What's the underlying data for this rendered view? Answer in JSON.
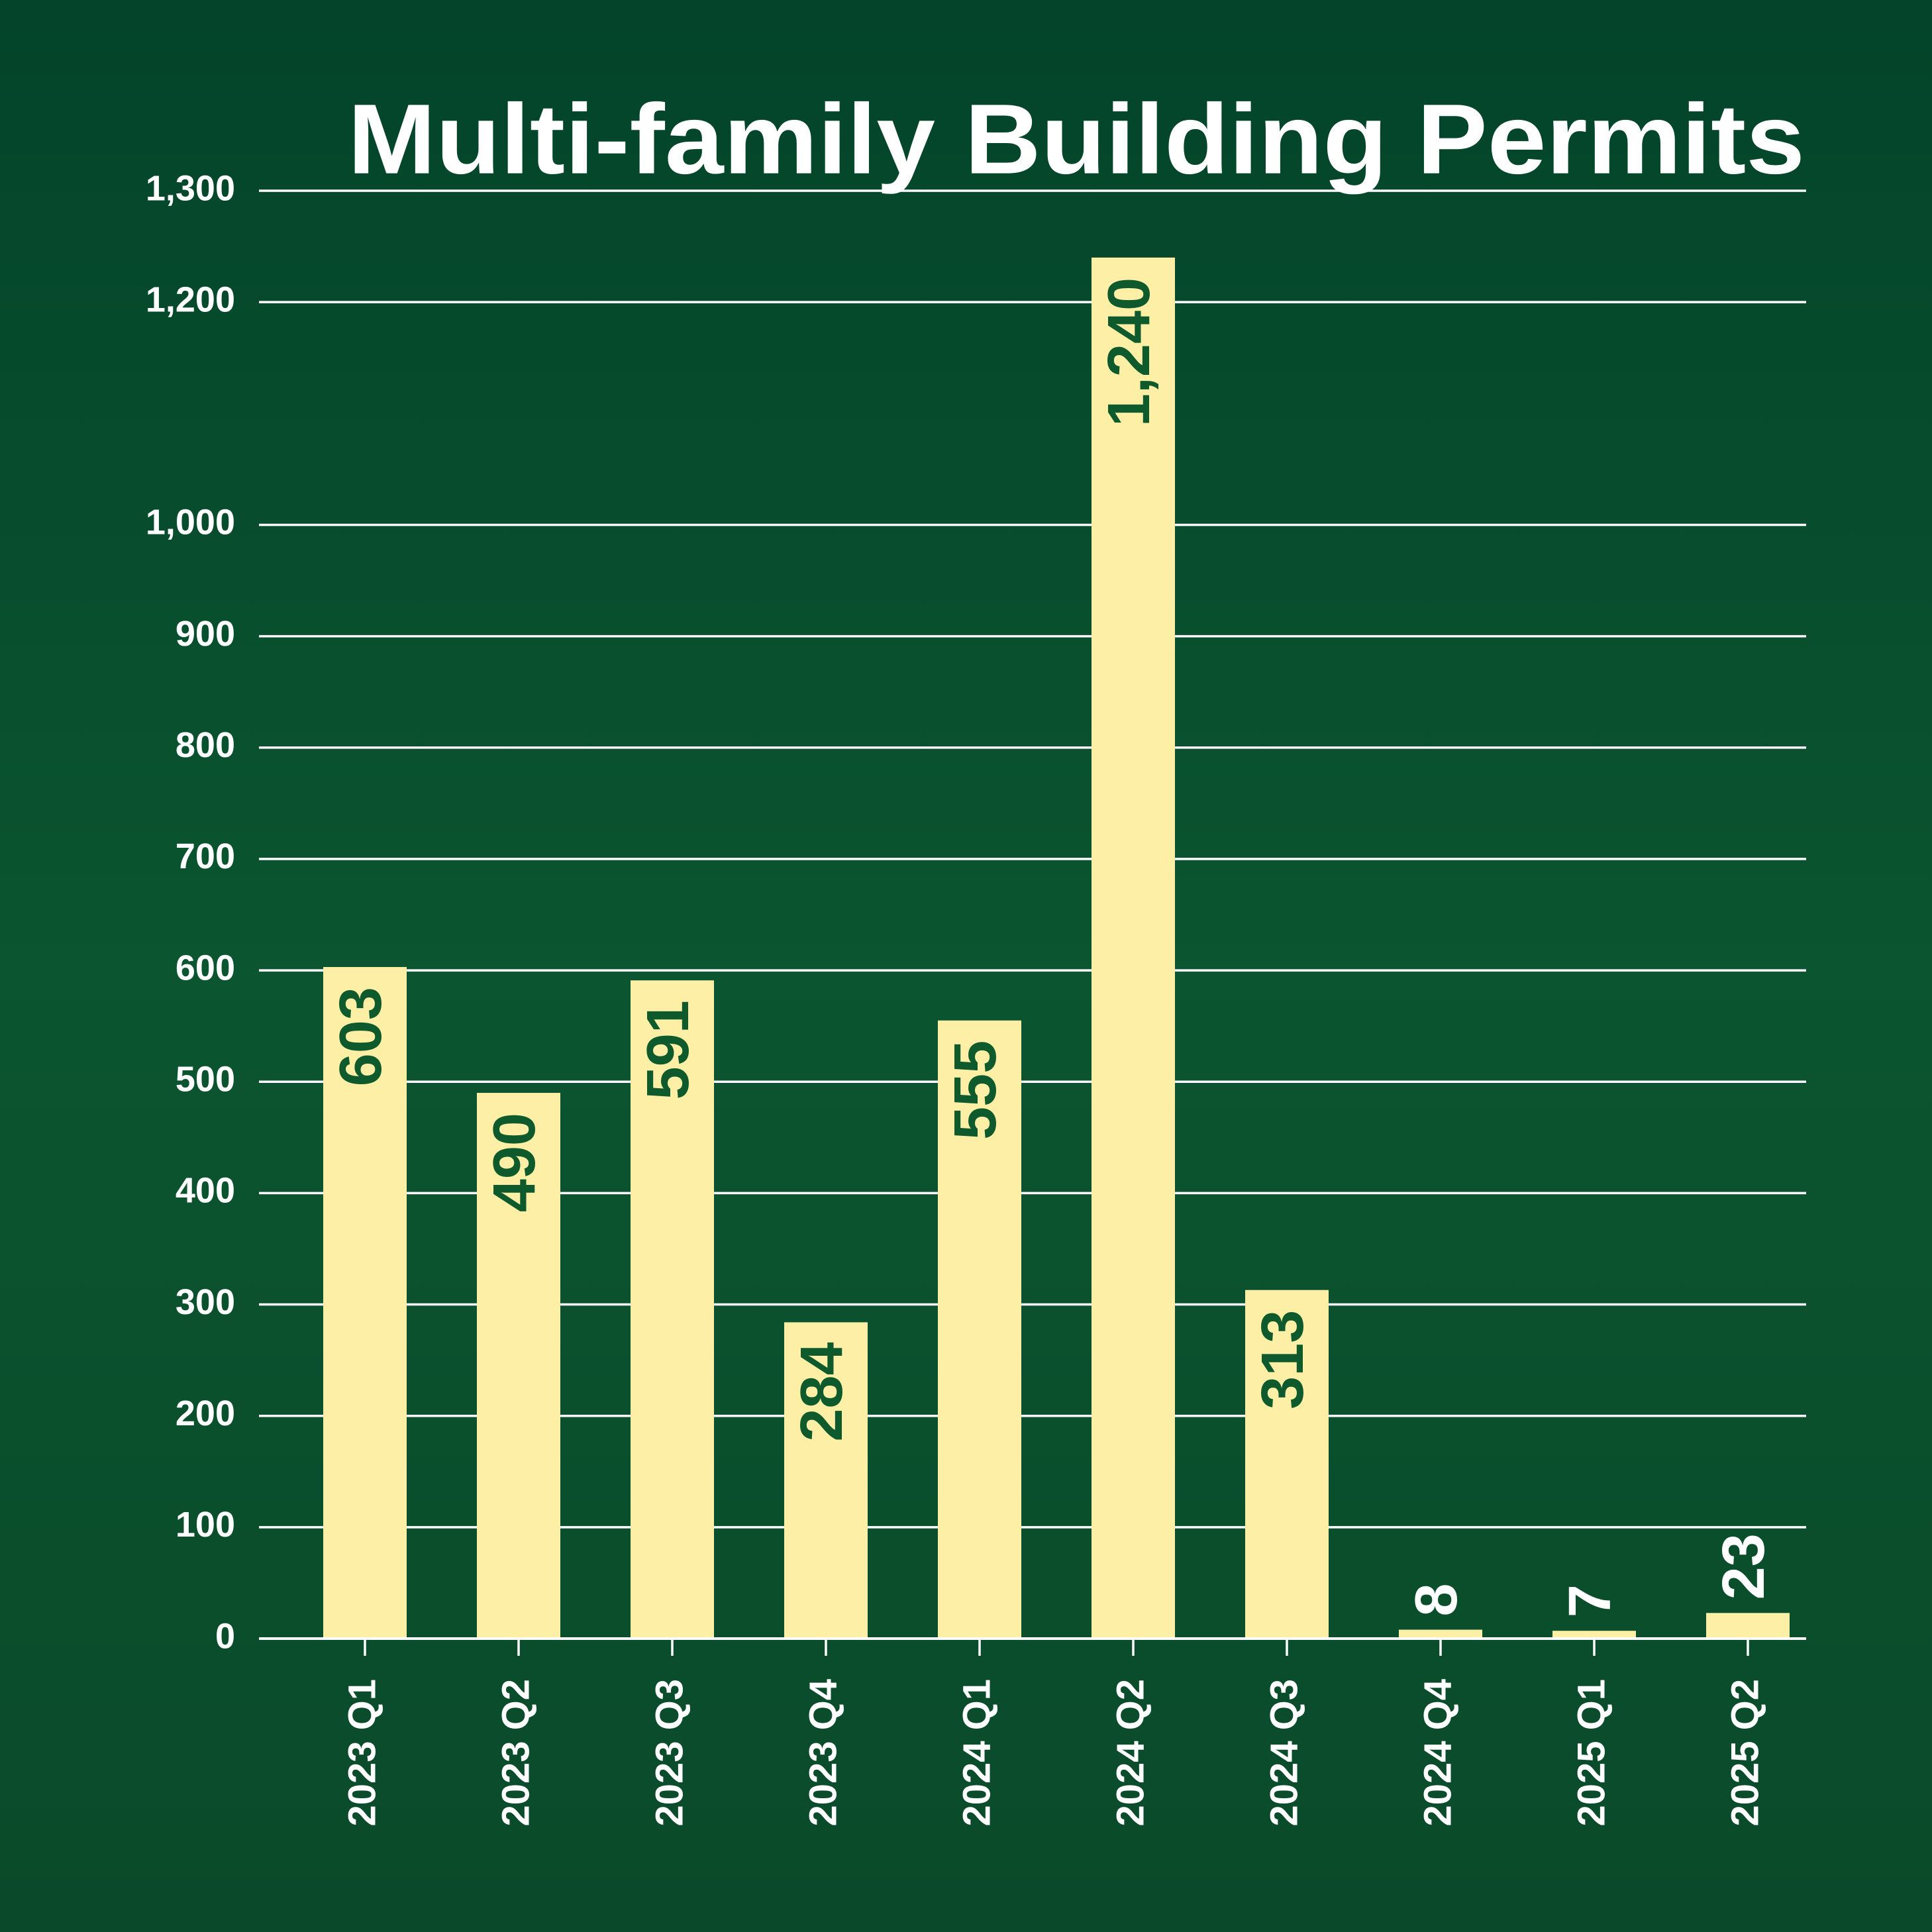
{
  "chart_data": {
    "type": "bar",
    "title": "Multi-family Building Permits",
    "categories": [
      "2023 Q1",
      "2023 Q2",
      "2023 Q3",
      "2023 Q4",
      "2024 Q1",
      "2024 Q2",
      "2024 Q3",
      "2024 Q4",
      "2025 Q1",
      "2025 Q2"
    ],
    "values": [
      603,
      490,
      591,
      284,
      555,
      1240,
      313,
      8,
      7,
      23
    ],
    "value_labels": [
      "603",
      "490",
      "591",
      "284",
      "555",
      "1,240",
      "313",
      "8",
      "7",
      "23"
    ],
    "color": "#fdf0a6",
    "ylim": [
      0,
      1300
    ],
    "yticks": [
      0,
      100,
      200,
      300,
      400,
      500,
      600,
      700,
      800,
      900,
      {
        "value": 1000,
        "label": "1,000"
      },
      {
        "value": 1200,
        "label": "1,200"
      },
      {
        "value": 1300,
        "label": "1,300"
      }
    ],
    "grid": true
  }
}
